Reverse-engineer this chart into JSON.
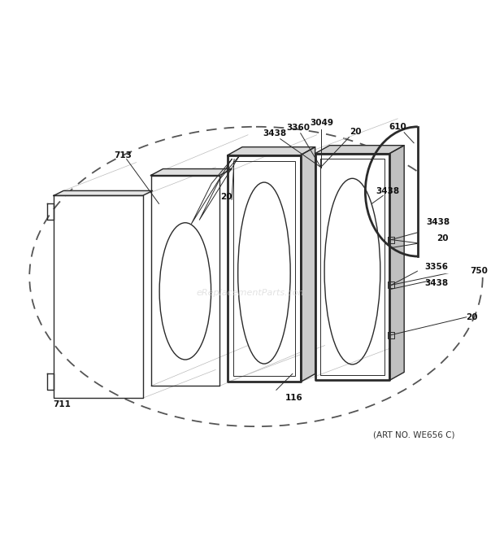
{
  "background_color": "#ffffff",
  "fig_width": 6.2,
  "fig_height": 6.6,
  "dpi": 100,
  "art_no_text": "(ART NO. WE656 C)",
  "watermark": "eReplacementParts.com"
}
